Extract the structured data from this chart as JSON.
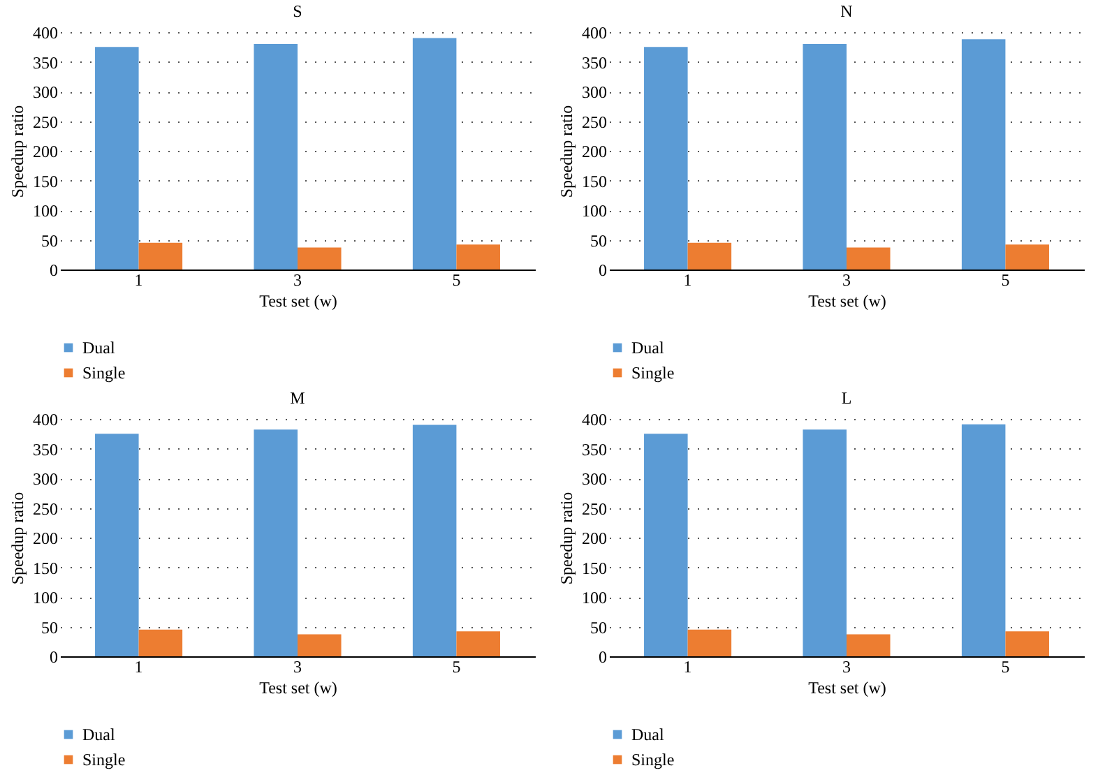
{
  "chart_data": [
    {
      "type": "bar",
      "title": "S",
      "xlabel": "Test set (w)",
      "ylabel": "Speedup ratio",
      "categories": [
        "1",
        "3",
        "5"
      ],
      "ylim": [
        0,
        400
      ],
      "yticks": [
        0,
        50,
        100,
        150,
        200,
        250,
        300,
        350,
        400
      ],
      "grid": "y",
      "legend": "bottom",
      "series": [
        {
          "name": "Dual",
          "color": "#5b9bd5",
          "values": [
            375,
            380,
            390
          ]
        },
        {
          "name": "Single",
          "color": "#ed7d31",
          "values": [
            45,
            37,
            42
          ]
        }
      ]
    },
    {
      "type": "bar",
      "title": "N",
      "xlabel": "Test set (w)",
      "ylabel": "Speedup ratio",
      "categories": [
        "1",
        "3",
        "5"
      ],
      "ylim": [
        0,
        400
      ],
      "yticks": [
        0,
        50,
        100,
        150,
        200,
        250,
        300,
        350,
        400
      ],
      "grid": "y",
      "legend": "bottom",
      "series": [
        {
          "name": "Dual",
          "color": "#5b9bd5",
          "values": [
            375,
            380,
            388
          ]
        },
        {
          "name": "Single",
          "color": "#ed7d31",
          "values": [
            45,
            37,
            42
          ]
        }
      ]
    },
    {
      "type": "bar",
      "title": "M",
      "xlabel": "Test set (w)",
      "ylabel": "Speedup ratio",
      "categories": [
        "1",
        "3",
        "5"
      ],
      "ylim": [
        0,
        400
      ],
      "yticks": [
        0,
        50,
        100,
        150,
        200,
        250,
        300,
        350,
        400
      ],
      "grid": "y",
      "legend": "bottom",
      "series": [
        {
          "name": "Dual",
          "color": "#5b9bd5",
          "values": [
            375,
            382,
            390
          ]
        },
        {
          "name": "Single",
          "color": "#ed7d31",
          "values": [
            45,
            37,
            42
          ]
        }
      ]
    },
    {
      "type": "bar",
      "title": "L",
      "xlabel": "Test set (w)",
      "ylabel": "Speedup ratio",
      "categories": [
        "1",
        "3",
        "5"
      ],
      "ylim": [
        0,
        400
      ],
      "yticks": [
        0,
        50,
        100,
        150,
        200,
        250,
        300,
        350,
        400
      ],
      "grid": "y",
      "legend": "bottom",
      "series": [
        {
          "name": "Dual",
          "color": "#5b9bd5",
          "values": [
            375,
            382,
            391
          ]
        },
        {
          "name": "Single",
          "color": "#ed7d31",
          "values": [
            45,
            37,
            42
          ]
        }
      ]
    }
  ]
}
